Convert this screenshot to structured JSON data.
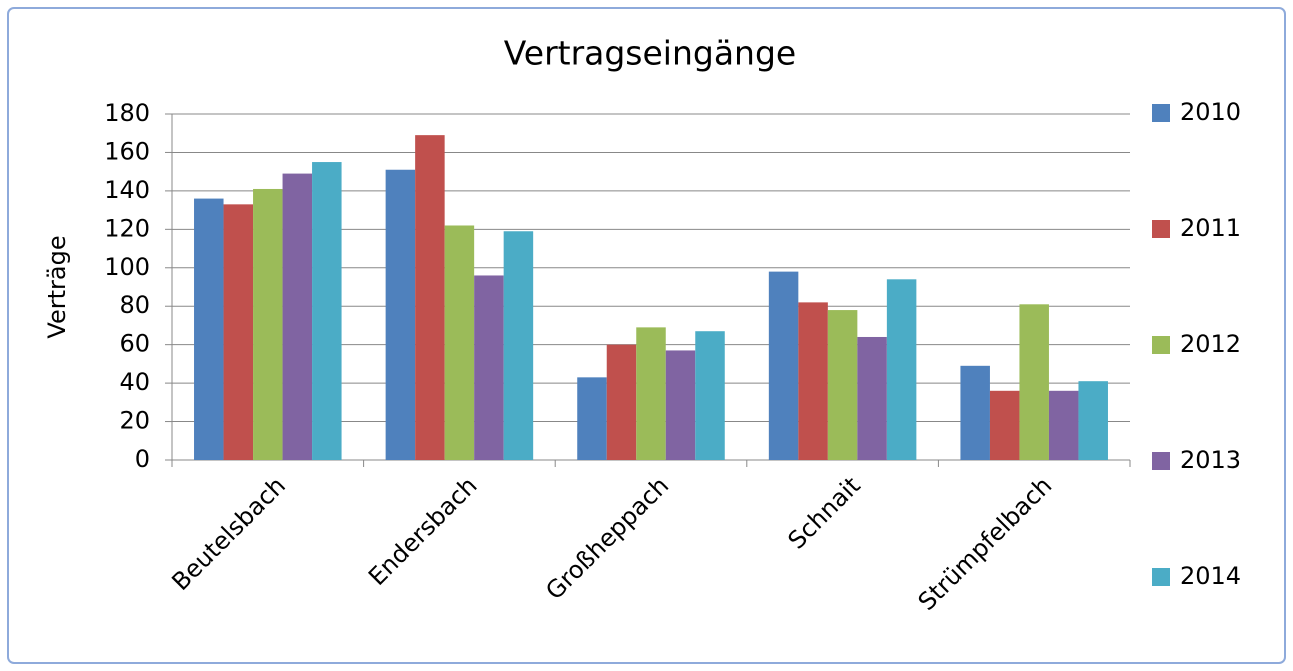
{
  "chart_data": {
    "type": "bar",
    "title": "Vertragseingänge",
    "y_label": "Verträge",
    "categories": [
      "Beutelsbach",
      "Endersbach",
      "Großheppach",
      "Schnait",
      "Strümpfelbach"
    ],
    "series": [
      {
        "name": "2010",
        "color": "#4f81bd",
        "values": [
          136,
          151,
          43,
          98,
          49
        ]
      },
      {
        "name": "2011",
        "color": "#c0504d",
        "values": [
          133,
          169,
          60,
          82,
          36
        ]
      },
      {
        "name": "2012",
        "color": "#9bbb59",
        "values": [
          141,
          122,
          69,
          78,
          81
        ]
      },
      {
        "name": "2013",
        "color": "#8064a2",
        "values": [
          149,
          96,
          57,
          64,
          36
        ]
      },
      {
        "name": "2014",
        "color": "#4bacc6",
        "values": [
          155,
          119,
          67,
          94,
          41
        ]
      }
    ],
    "ylim": [
      0,
      180
    ],
    "yticks": [
      0,
      20,
      40,
      60,
      80,
      100,
      120,
      140,
      160,
      180
    ],
    "grid": true,
    "legend": "right"
  }
}
